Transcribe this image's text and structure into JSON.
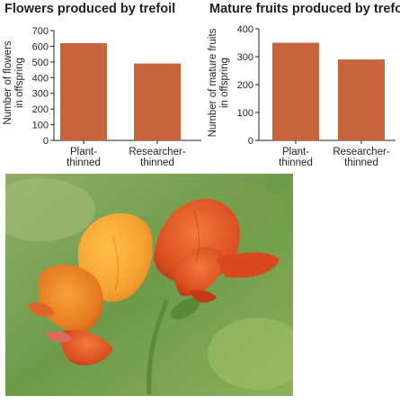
{
  "chart_data": [
    {
      "type": "bar",
      "title": "Flowers produced by trefoil",
      "ylabel": [
        "Number of flowers",
        "in offspring"
      ],
      "categories": [
        [
          "Plant-",
          "thinned"
        ],
        [
          "Researcher-",
          "thinned"
        ]
      ],
      "values": [
        620,
        490
      ],
      "ylim": [
        0,
        700
      ],
      "yticks": [
        0,
        100,
        200,
        300,
        400,
        500,
        600,
        700
      ],
      "grid": false,
      "bar_color": "#c8643c"
    },
    {
      "type": "bar",
      "title": "Mature fruits produced by trefoil",
      "ylabel": [
        "Number of mature fruits",
        "in offspring"
      ],
      "categories": [
        [
          "Plant-",
          "thinned"
        ],
        [
          "Researcher-",
          "thinned"
        ]
      ],
      "values": [
        350,
        290
      ],
      "ylim": [
        0,
        400
      ],
      "yticks": [
        0,
        100,
        200,
        300,
        400
      ],
      "grid": false,
      "bar_color": "#c8643c"
    }
  ],
  "photo": {
    "icon": "trefoil-flower-photo",
    "palette": [
      "#e0711e",
      "#f5a330",
      "#c23a1a",
      "#6f9a4a"
    ]
  }
}
